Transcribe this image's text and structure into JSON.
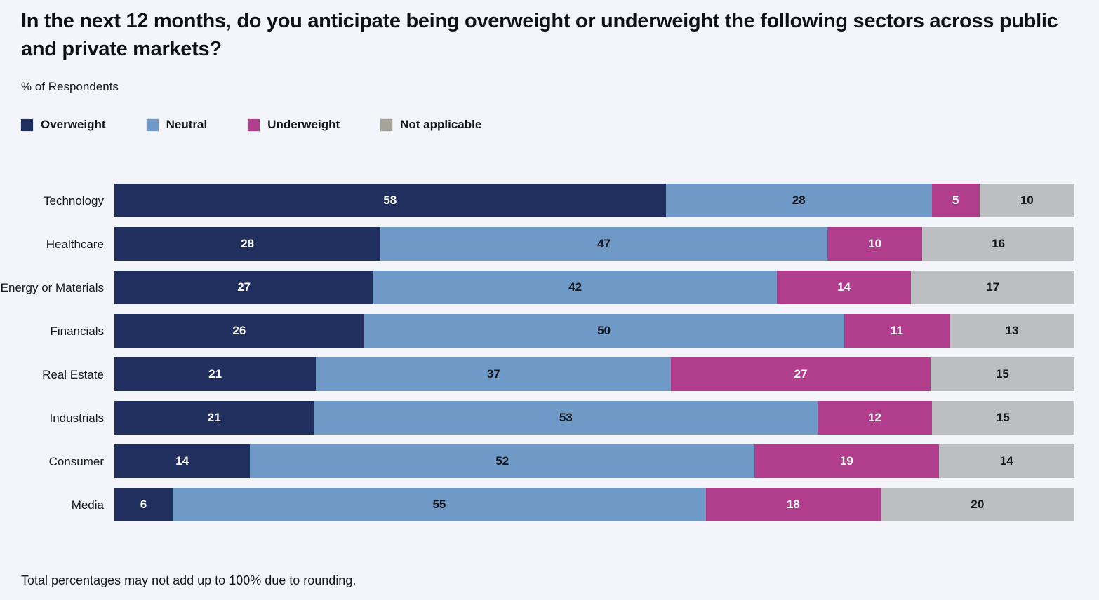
{
  "title": "In the next 12 months, do you anticipate being overweight or underweight the following sectors across public and private markets?",
  "subtitle": "% of Respondents",
  "footnote": "Total percentages may not add up to 100% due to rounding.",
  "colors": {
    "background": "#f4f5fa",
    "title_text": "#0f1116",
    "overweight": "#212f5e",
    "neutral": "#6f9ac8",
    "underweight": "#b13e8d",
    "not_applicable_bar": "#bcbec2",
    "not_applicable_legend_swatch": "#a5a19b"
  },
  "legend": {
    "items": [
      {
        "label": "Overweight",
        "color": "#212f5e"
      },
      {
        "label": "Neutral",
        "color": "#6f9ac8"
      },
      {
        "label": "Underweight",
        "color": "#b13e8d"
      },
      {
        "label": "Not applicable",
        "color": "#a5a19b"
      }
    ]
  },
  "chart_data": {
    "type": "bar",
    "orientation": "horizontal",
    "stacked": true,
    "normalized_to_full_width": true,
    "title": "In the next 12 months, do you anticipate being overweight or underweight the following sectors across public and private markets?",
    "xlabel": "% of Respondents",
    "xlim": [
      0,
      100
    ],
    "grid": false,
    "legend_position": "top",
    "categories": [
      "Technology",
      "Healthcare",
      "Energy or Materials",
      "Financials",
      "Real Estate",
      "Industrials",
      "Consumer",
      "Media"
    ],
    "series": [
      {
        "name": "Overweight",
        "color": "#212f5e",
        "label_color": "#ffffff",
        "values": [
          58,
          28,
          27,
          26,
          21,
          21,
          14,
          6
        ]
      },
      {
        "name": "Neutral",
        "color": "#6f9ac8",
        "label_color": "#14161c",
        "values": [
          28,
          47,
          42,
          50,
          37,
          53,
          52,
          55
        ]
      },
      {
        "name": "Underweight",
        "color": "#b13e8d",
        "label_color": "#ffffff",
        "values": [
          5,
          10,
          14,
          11,
          27,
          12,
          19,
          18
        ]
      },
      {
        "name": "Not applicable",
        "color": "#bcbec2",
        "label_color": "#14161c",
        "values": [
          10,
          16,
          17,
          13,
          15,
          15,
          14,
          20
        ]
      }
    ]
  }
}
